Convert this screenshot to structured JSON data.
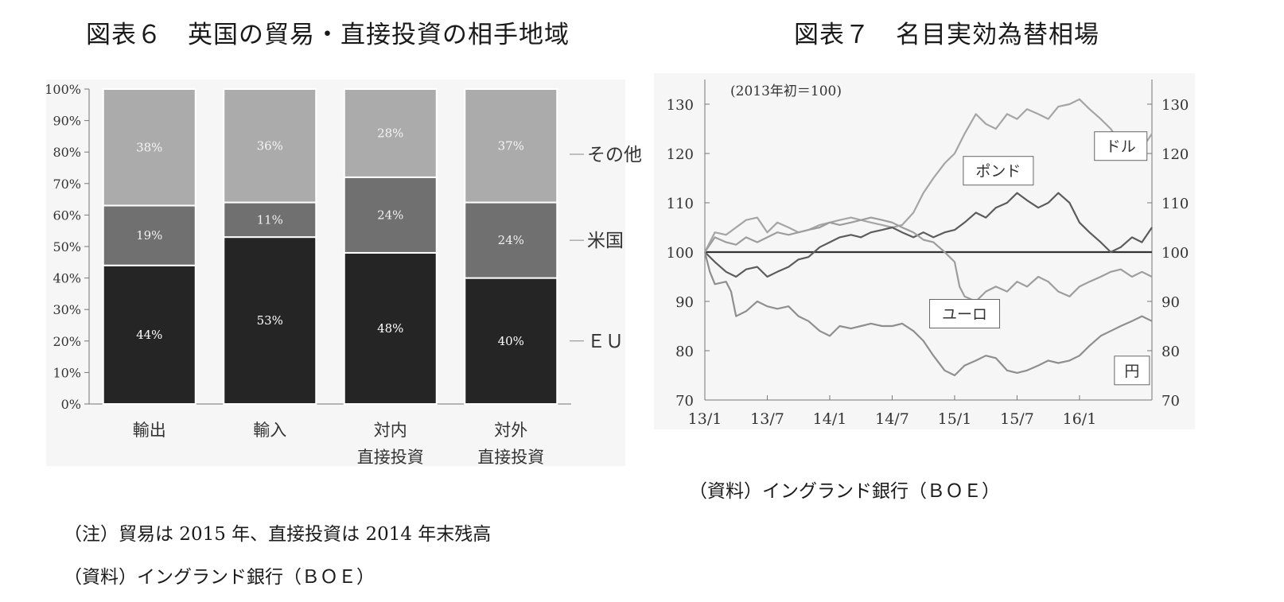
{
  "figure6": {
    "title": "図表６　英国の貿易・直接投資の相手地域",
    "note": "（注）貿易は 2015 年、直接投資は 2014 年末残高",
    "source": "（資料）イングランド銀行（ＢＯＥ）"
  },
  "figure7": {
    "title": "図表７　名目実効為替相場",
    "source": "（資料）イングランド銀行（ＢＯＥ）"
  },
  "chart_data": [
    {
      "type": "bar",
      "stacked": true,
      "title": "図表６　英国の貿易・直接投資の相手地域",
      "categories": [
        [
          "輸出"
        ],
        [
          "輸入"
        ],
        [
          "対内",
          "直接投資"
        ],
        [
          "対外",
          "直接投資"
        ]
      ],
      "series": [
        {
          "name": "ＥＵ",
          "values": [
            44,
            53,
            48,
            40
          ],
          "labels": [
            "44%",
            "53%",
            "48%",
            "40%"
          ],
          "color": "#252525",
          "label_color": "#ffffff"
        },
        {
          "name": "米国",
          "values": [
            19,
            11,
            24,
            24
          ],
          "labels": [
            "19%",
            "11%",
            "24%",
            "24%"
          ],
          "color": "#707070",
          "label_color": "#f0f0f0"
        },
        {
          "name": "その他",
          "values": [
            38,
            36,
            28,
            37
          ],
          "labels": [
            "38%",
            "36%",
            "28%",
            "37%"
          ],
          "color": "#ababab",
          "label_color": "#f4f4f4"
        }
      ],
      "yticks": [
        "0%",
        "10%",
        "20%",
        "30%",
        "40%",
        "50%",
        "60%",
        "70%",
        "80%",
        "90%",
        "100%"
      ],
      "ylim": [
        0,
        100
      ],
      "legend": "right"
    },
    {
      "type": "line",
      "title": "図表７　名目実効為替相場",
      "annotation": "(2013年初＝100)",
      "x_range": [
        2013.0,
        2016.58
      ],
      "xticks": [
        {
          "label": "13/1",
          "x": 2013.0
        },
        {
          "label": "13/7",
          "x": 2013.5
        },
        {
          "label": "14/1",
          "x": 2014.0
        },
        {
          "label": "14/7",
          "x": 2014.5
        },
        {
          "label": "15/1",
          "x": 2015.0
        },
        {
          "label": "15/7",
          "x": 2015.5
        },
        {
          "label": "16/1",
          "x": 2016.0
        }
      ],
      "ylim": [
        70,
        135
      ],
      "yticks": [
        70,
        80,
        90,
        100,
        110,
        120,
        130
      ],
      "reference_line": 100,
      "series": [
        {
          "name": "ドル",
          "color": "#a5a5a5",
          "label_x": 2016.33,
          "label_y": 121.5,
          "points": [
            [
              2013.0,
              100
            ],
            [
              2013.08,
              104
            ],
            [
              2013.17,
              103.5
            ],
            [
              2013.25,
              105
            ],
            [
              2013.33,
              106.5
            ],
            [
              2013.42,
              107
            ],
            [
              2013.5,
              104
            ],
            [
              2013.58,
              106
            ],
            [
              2013.67,
              105
            ],
            [
              2013.75,
              104
            ],
            [
              2013.83,
              104.5
            ],
            [
              2013.92,
              105.5
            ],
            [
              2014.0,
              106
            ],
            [
              2014.08,
              106.5
            ],
            [
              2014.17,
              107
            ],
            [
              2014.25,
              106.5
            ],
            [
              2014.33,
              106
            ],
            [
              2014.42,
              105.5
            ],
            [
              2014.5,
              105
            ],
            [
              2014.58,
              105.5
            ],
            [
              2014.67,
              108
            ],
            [
              2014.75,
              112
            ],
            [
              2014.83,
              115
            ],
            [
              2014.92,
              118
            ],
            [
              2015.0,
              120
            ],
            [
              2015.08,
              124
            ],
            [
              2015.17,
              128
            ],
            [
              2015.25,
              126
            ],
            [
              2015.33,
              125
            ],
            [
              2015.42,
              128
            ],
            [
              2015.5,
              127
            ],
            [
              2015.58,
              129
            ],
            [
              2015.67,
              128
            ],
            [
              2015.75,
              127
            ],
            [
              2015.83,
              129.5
            ],
            [
              2015.92,
              130
            ],
            [
              2016.0,
              131
            ],
            [
              2016.08,
              129
            ],
            [
              2016.17,
              127
            ],
            [
              2016.25,
              125
            ],
            [
              2016.33,
              122
            ],
            [
              2016.42,
              124
            ],
            [
              2016.5,
              121
            ],
            [
              2016.58,
              124
            ]
          ]
        },
        {
          "name": "ポンド",
          "color": "#5c5c5c",
          "label_x": 2015.35,
          "label_y": 116.5,
          "points": [
            [
              2013.0,
              100
            ],
            [
              2013.08,
              98
            ],
            [
              2013.17,
              96
            ],
            [
              2013.25,
              95
            ],
            [
              2013.33,
              96.5
            ],
            [
              2013.42,
              97
            ],
            [
              2013.5,
              95
            ],
            [
              2013.58,
              96
            ],
            [
              2013.67,
              97
            ],
            [
              2013.75,
              98.5
            ],
            [
              2013.83,
              99
            ],
            [
              2013.92,
              101
            ],
            [
              2014.0,
              102
            ],
            [
              2014.08,
              103
            ],
            [
              2014.17,
              103.5
            ],
            [
              2014.25,
              103
            ],
            [
              2014.33,
              104
            ],
            [
              2014.42,
              104.5
            ],
            [
              2014.5,
              105
            ],
            [
              2014.58,
              104
            ],
            [
              2014.67,
              103
            ],
            [
              2014.75,
              104
            ],
            [
              2014.83,
              103
            ],
            [
              2014.92,
              104
            ],
            [
              2015.0,
              104.5
            ],
            [
              2015.08,
              106
            ],
            [
              2015.17,
              108
            ],
            [
              2015.25,
              107
            ],
            [
              2015.33,
              109
            ],
            [
              2015.42,
              110
            ],
            [
              2015.5,
              112
            ],
            [
              2015.58,
              110.5
            ],
            [
              2015.67,
              109
            ],
            [
              2015.75,
              110
            ],
            [
              2015.83,
              112
            ],
            [
              2015.92,
              110
            ],
            [
              2016.0,
              106
            ],
            [
              2016.08,
              104
            ],
            [
              2016.17,
              102
            ],
            [
              2016.25,
              100
            ],
            [
              2016.33,
              101
            ],
            [
              2016.42,
              103
            ],
            [
              2016.5,
              102
            ],
            [
              2016.58,
              105
            ]
          ]
        },
        {
          "name": "ユーロ",
          "color": "#9d9d9d",
          "label_x": 2015.08,
          "label_y": 87.5,
          "points": [
            [
              2013.0,
              100
            ],
            [
              2013.08,
              103
            ],
            [
              2013.17,
              102
            ],
            [
              2013.25,
              101.5
            ],
            [
              2013.33,
              103
            ],
            [
              2013.42,
              102
            ],
            [
              2013.5,
              103
            ],
            [
              2013.58,
              104
            ],
            [
              2013.67,
              103.5
            ],
            [
              2013.75,
              104
            ],
            [
              2013.83,
              104.5
            ],
            [
              2013.92,
              105
            ],
            [
              2014.0,
              106
            ],
            [
              2014.08,
              105.5
            ],
            [
              2014.17,
              106
            ],
            [
              2014.25,
              106.5
            ],
            [
              2014.33,
              107
            ],
            [
              2014.42,
              106.5
            ],
            [
              2014.5,
              106
            ],
            [
              2014.58,
              105
            ],
            [
              2014.67,
              104
            ],
            [
              2014.75,
              102.5
            ],
            [
              2014.83,
              102
            ],
            [
              2014.92,
              100
            ],
            [
              2015.0,
              98
            ],
            [
              2015.04,
              93
            ],
            [
              2015.08,
              91
            ],
            [
              2015.17,
              90
            ],
            [
              2015.25,
              92
            ],
            [
              2015.33,
              93
            ],
            [
              2015.42,
              92
            ],
            [
              2015.5,
              94
            ],
            [
              2015.58,
              93
            ],
            [
              2015.67,
              95
            ],
            [
              2015.75,
              94
            ],
            [
              2015.83,
              92
            ],
            [
              2015.92,
              91
            ],
            [
              2016.0,
              93
            ],
            [
              2016.08,
              94
            ],
            [
              2016.17,
              95
            ],
            [
              2016.25,
              96
            ],
            [
              2016.33,
              96.5
            ],
            [
              2016.42,
              95
            ],
            [
              2016.5,
              96
            ],
            [
              2016.58,
              95
            ]
          ]
        },
        {
          "name": "円",
          "color": "#8f8f8f",
          "label_x": 2016.42,
          "label_y": 76,
          "points": [
            [
              2013.0,
              100
            ],
            [
              2013.04,
              96
            ],
            [
              2013.08,
              93.5
            ],
            [
              2013.17,
              94
            ],
            [
              2013.21,
              92
            ],
            [
              2013.25,
              87
            ],
            [
              2013.33,
              88
            ],
            [
              2013.42,
              90
            ],
            [
              2013.5,
              89
            ],
            [
              2013.58,
              88.5
            ],
            [
              2013.67,
              89
            ],
            [
              2013.75,
              87
            ],
            [
              2013.83,
              86
            ],
            [
              2013.92,
              84
            ],
            [
              2014.0,
              83
            ],
            [
              2014.08,
              85
            ],
            [
              2014.17,
              84.5
            ],
            [
              2014.25,
              85
            ],
            [
              2014.33,
              85.5
            ],
            [
              2014.42,
              85
            ],
            [
              2014.5,
              85
            ],
            [
              2014.58,
              85.5
            ],
            [
              2014.67,
              84
            ],
            [
              2014.75,
              82
            ],
            [
              2014.83,
              79
            ],
            [
              2014.92,
              76
            ],
            [
              2015.0,
              75
            ],
            [
              2015.08,
              77
            ],
            [
              2015.17,
              78
            ],
            [
              2015.25,
              79
            ],
            [
              2015.33,
              78.5
            ],
            [
              2015.42,
              76
            ],
            [
              2015.5,
              75.5
            ],
            [
              2015.58,
              76
            ],
            [
              2015.67,
              77
            ],
            [
              2015.75,
              78
            ],
            [
              2015.83,
              77.5
            ],
            [
              2015.92,
              78
            ],
            [
              2016.0,
              79
            ],
            [
              2016.08,
              81
            ],
            [
              2016.17,
              83
            ],
            [
              2016.25,
              84
            ],
            [
              2016.33,
              85
            ],
            [
              2016.42,
              86
            ],
            [
              2016.5,
              87
            ],
            [
              2016.58,
              86
            ]
          ]
        }
      ]
    }
  ]
}
